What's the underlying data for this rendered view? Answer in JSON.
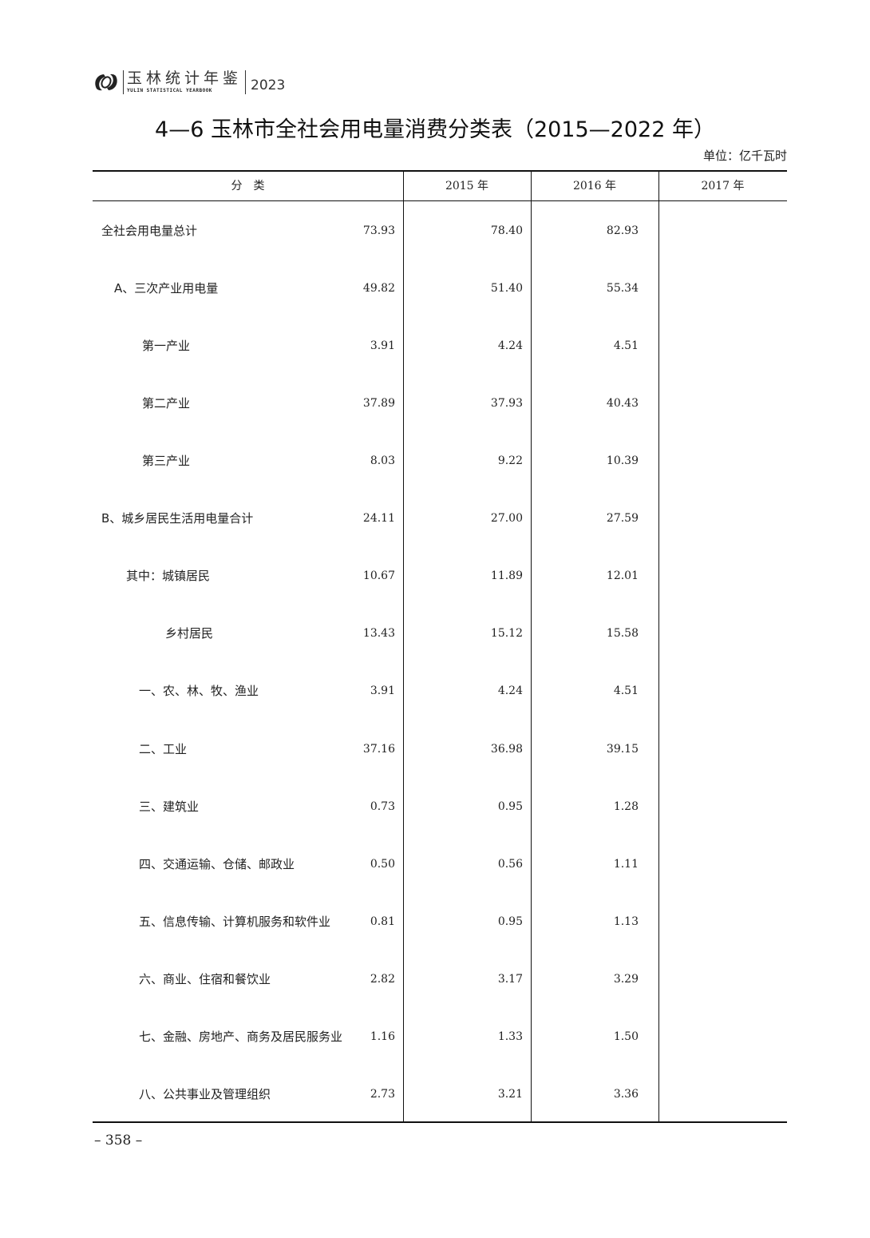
{
  "header": {
    "title_cn": "玉林统计年鉴",
    "title_en": "YULIN STATISTICAL YEARBOOK",
    "year": "2023"
  },
  "title": "4—6  玉林市全社会用电量消费分类表（2015—2022 年）",
  "unit": "单位：亿千瓦时",
  "columns": [
    "分　类",
    "2015 年",
    "2016 年",
    "2017 年"
  ],
  "rows": [
    {
      "label": "全社会用电量总计",
      "level": 0,
      "values": [
        "73.93",
        "78.40",
        "82.93"
      ]
    },
    {
      "label": "A、三次产业用电量",
      "level": 1,
      "values": [
        "49.82",
        "51.40",
        "55.34"
      ]
    },
    {
      "label": "第一产业",
      "level": 3,
      "values": [
        "3.91",
        "4.24",
        "4.51"
      ]
    },
    {
      "label": "第二产业",
      "level": 3,
      "values": [
        "37.89",
        "37.93",
        "40.43"
      ]
    },
    {
      "label": "第三产业",
      "level": 3,
      "values": [
        "8.03",
        "9.22",
        "10.39"
      ]
    },
    {
      "label": "B、城乡居民生活用电量合计",
      "level": 0,
      "values": [
        "24.11",
        "27.00",
        "27.59"
      ]
    },
    {
      "label": "其中：城镇居民",
      "level": 2,
      "values": [
        "10.67",
        "11.89",
        "12.01"
      ]
    },
    {
      "label": "乡村居民",
      "level": 4,
      "values": [
        "13.43",
        "15.12",
        "15.58"
      ]
    },
    {
      "label": "一、农、林、牧、渔业",
      "level": 5,
      "values": [
        "3.91",
        "4.24",
        "4.51"
      ]
    },
    {
      "label": "二、工业",
      "level": 5,
      "values": [
        "37.16",
        "36.98",
        "39.15"
      ]
    },
    {
      "label": "三、建筑业",
      "level": 5,
      "values": [
        "0.73",
        "0.95",
        "1.28"
      ]
    },
    {
      "label": "四、交通运输、仓储、邮政业",
      "level": 5,
      "values": [
        "0.50",
        "0.56",
        "1.11"
      ]
    },
    {
      "label": "五、信息传输、计算机服务和软件业",
      "level": 5,
      "values": [
        "0.81",
        "0.95",
        "1.13"
      ]
    },
    {
      "label": "六、商业、住宿和餐饮业",
      "level": 5,
      "values": [
        "2.82",
        "3.17",
        "3.29"
      ]
    },
    {
      "label": "七、金融、房地产、商务及居民服务业",
      "level": 5,
      "values": [
        "1.16",
        "1.33",
        "1.50"
      ]
    },
    {
      "label": "八、公共事业及管理组织",
      "level": 5,
      "values": [
        "2.73",
        "3.21",
        "3.36"
      ]
    }
  ],
  "page_number": "– 358 –"
}
